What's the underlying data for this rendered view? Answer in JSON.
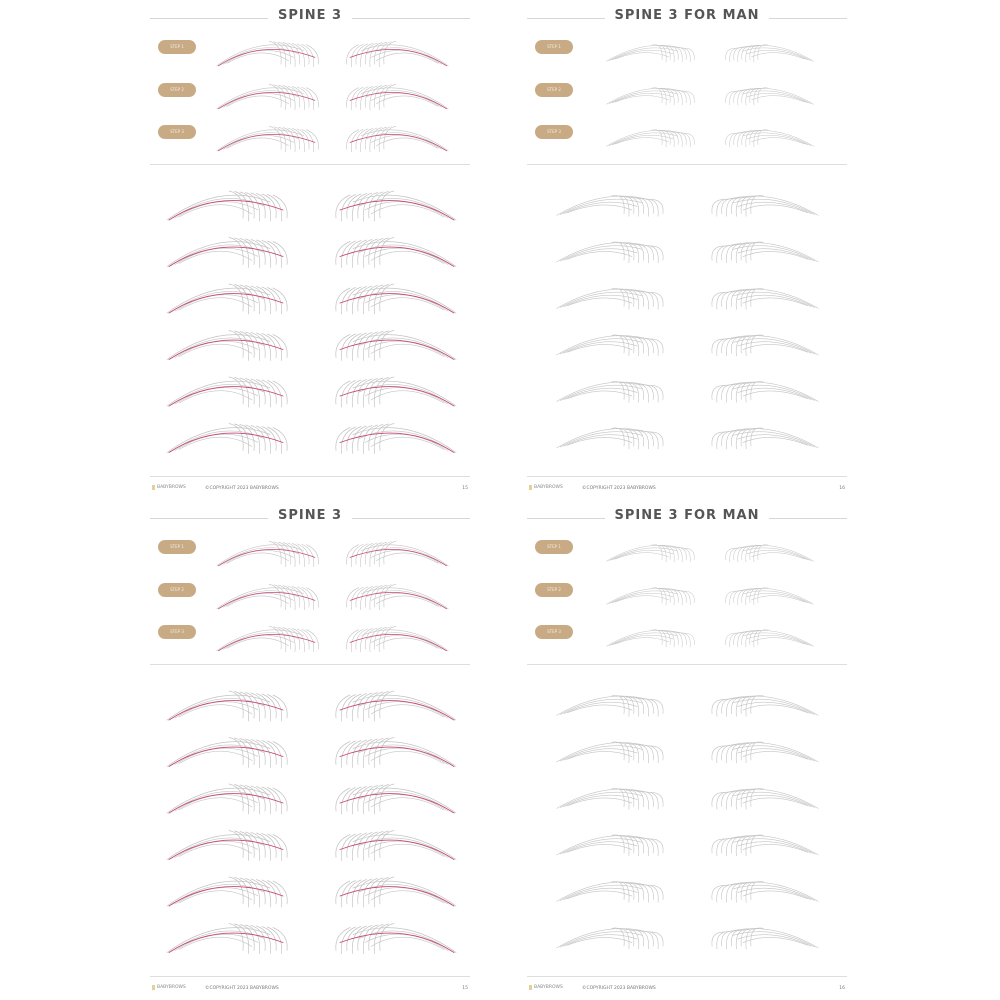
{
  "pages": [
    {
      "title": "SPINE 3",
      "style": "women",
      "steps": [
        "STEP 1",
        "STEP 2",
        "STEP 3"
      ],
      "logo": "BABYBROWS",
      "copyright": "©COPYRIGHT 2023 BABYBROWS",
      "page_number": "15"
    },
    {
      "title": "SPINE 3 FOR MAN",
      "style": "men",
      "steps": [
        "STEP 1",
        "STEP 2",
        "STEP 3"
      ],
      "logo": "BABYBROWS",
      "copyright": "©COPYRIGHT 2023 BABYBROWS",
      "page_number": "16"
    },
    {
      "title": "SPINE 3",
      "style": "women",
      "steps": [
        "STEP 1",
        "STEP 2",
        "STEP 3"
      ],
      "logo": "BABYBROWS",
      "copyright": "©COPYRIGHT 2023 BABYBROWS",
      "page_number": "15"
    },
    {
      "title": "SPINE 3 FOR MAN",
      "style": "men",
      "steps": [
        "STEP 1",
        "STEP 2",
        "STEP 3"
      ],
      "logo": "BABYBROWS",
      "copyright": "©COPYRIGHT 2023 BABYBROWS",
      "page_number": "16"
    }
  ],
  "colors": {
    "badge": "#c8ab85",
    "spine_line": "#c7467a",
    "hair_stroke": "#c4c4c4",
    "title": "#555555"
  }
}
